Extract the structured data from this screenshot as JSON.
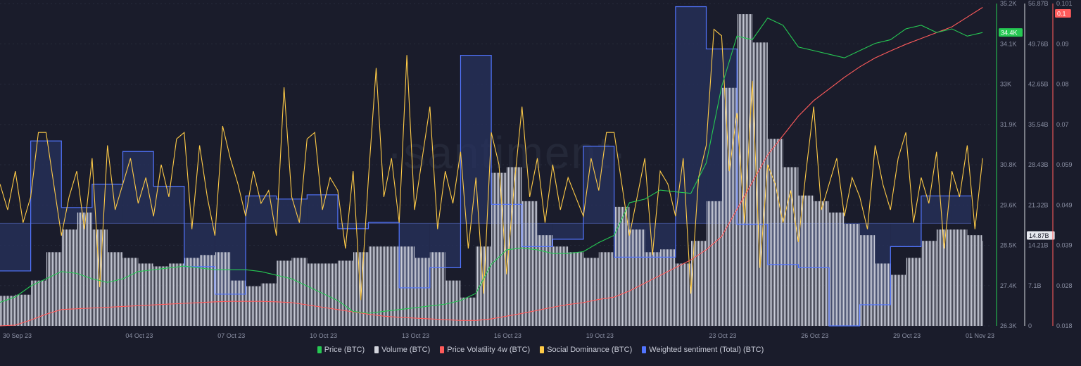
{
  "watermark": "·santiment·",
  "chart_data": {
    "type": "line",
    "x_ticks": [
      "30 Sep 23",
      "04 Oct 23",
      "07 Oct 23",
      "10 Oct 23",
      "13 Oct 23",
      "16 Oct 23",
      "19 Oct 23",
      "23 Oct 23",
      "26 Oct 23",
      "29 Oct 23",
      "01 Nov 23"
    ],
    "x_tick_dates": [
      "2023-09-30",
      "2023-10-04",
      "2023-10-07",
      "2023-10-10",
      "2023-10-13",
      "2023-10-16",
      "2023-10-19",
      "2023-10-23",
      "2023-10-26",
      "2023-10-29",
      "2023-11-01"
    ],
    "x_range": [
      "2023-09-29 12:00",
      "2023-11-01 00:00"
    ],
    "grid": true,
    "legend_placement": "bottom",
    "axes": {
      "price": {
        "ticks": [
          "35.2K",
          "34.1K",
          "33K",
          "31.9K",
          "30.8K",
          "29.6K",
          "28.5K",
          "27.4K",
          "26.3K"
        ],
        "ylim": [
          26.3,
          35.2
        ],
        "unit": "K USD",
        "current_label": "34.4K",
        "current_value": 34.4,
        "color": "#26c953"
      },
      "volume": {
        "ticks": [
          "56.87B",
          "49.76B",
          "42.65B",
          "35.54B",
          "28.43B",
          "21.32B",
          "14.21B",
          "7.1B",
          "0"
        ],
        "ylim": [
          0,
          56.87
        ],
        "unit": "B",
        "current_label": "14.87B",
        "current_value": 14.87,
        "color": "#d2d4dc"
      },
      "volatility": {
        "ticks": [
          "0.101",
          "0.09",
          "0.08",
          "0.07",
          "0.059",
          "0.049",
          "0.039",
          "0.028",
          "0.018"
        ],
        "ylim": [
          0.018,
          0.101
        ],
        "current_label": "0.1",
        "current_value": 0.1,
        "color": "#ff5b5b"
      }
    },
    "series": [
      {
        "name": "Price (BTC)",
        "color": "#26c953",
        "axis": "price",
        "x_start": "2023-09-29 12:00",
        "interval_hours": 12,
        "values": [
          26.95,
          27.1,
          27.4,
          27.6,
          27.8,
          27.75,
          27.6,
          27.5,
          27.6,
          27.8,
          27.85,
          27.9,
          27.95,
          27.9,
          27.85,
          27.85,
          27.85,
          27.8,
          27.7,
          27.6,
          27.4,
          27.2,
          27.0,
          26.7,
          26.65,
          26.7,
          26.75,
          26.8,
          26.85,
          26.9,
          27.0,
          27.2,
          28.0,
          28.4,
          28.45,
          28.4,
          28.3,
          28.3,
          28.35,
          28.6,
          28.8,
          29.7,
          29.8,
          30.05,
          30.0,
          29.96,
          30.8,
          32.9,
          34.3,
          34.2,
          34.8,
          34.6,
          34.0,
          33.9,
          33.8,
          33.7,
          33.9,
          34.1,
          34.2,
          34.5,
          34.6,
          34.4,
          34.5,
          34.3,
          34.4
        ]
      },
      {
        "name": "Volume (BTC)",
        "color": "#d2d4dc",
        "axis": "volume",
        "x_start": "2023-09-29 12:00",
        "interval_hours": 12,
        "values": [
          5.3,
          5.5,
          8,
          13,
          17,
          20,
          17,
          13,
          12,
          11,
          10.5,
          11,
          12,
          12.5,
          13,
          8,
          7,
          7.5,
          11.5,
          12,
          11,
          11,
          11.5,
          13,
          14,
          14,
          14,
          12,
          13,
          8,
          5,
          14,
          27,
          28,
          22,
          16,
          14,
          13,
          12,
          13,
          21,
          17,
          13,
          13.5,
          11,
          15,
          22,
          42,
          55,
          50,
          33,
          28,
          23,
          22,
          20,
          18,
          16,
          11,
          9,
          12,
          15,
          17,
          17,
          16,
          15
        ]
      },
      {
        "name": "Price Volatility 4w (BTC)",
        "color": "#ff5b5b",
        "axis": "volatility",
        "x_start": "2023-09-29 12:00",
        "interval_hours": 12,
        "values": [
          0.018,
          0.0182,
          0.0195,
          0.021,
          0.0222,
          0.0224,
          0.0226,
          0.0228,
          0.023,
          0.0232,
          0.0234,
          0.0236,
          0.0238,
          0.024,
          0.0242,
          0.0243,
          0.0243,
          0.0243,
          0.0242,
          0.024,
          0.0234,
          0.0228,
          0.0222,
          0.0216,
          0.021,
          0.0205,
          0.0202,
          0.02,
          0.0198,
          0.0196,
          0.0194,
          0.0194,
          0.0198,
          0.0205,
          0.0212,
          0.022,
          0.0228,
          0.0235,
          0.024,
          0.0248,
          0.0254,
          0.027,
          0.029,
          0.031,
          0.033,
          0.035,
          0.0376,
          0.041,
          0.048,
          0.055,
          0.062,
          0.067,
          0.072,
          0.076,
          0.079,
          0.082,
          0.0847,
          0.087,
          0.0888,
          0.0905,
          0.092,
          0.0935,
          0.095,
          0.0975,
          0.1
        ]
      },
      {
        "name": "Social Dominance (BTC)",
        "color": "#ffcb47",
        "axis": "hidden",
        "ylim": [
          0,
          5
        ],
        "x_start": "2023-09-29 12:00",
        "interval_hours": 6,
        "values": [
          2.2,
          1.8,
          2.4,
          1.6,
          2.0,
          3.0,
          3.0,
          2.2,
          1.4,
          2.0,
          2.4,
          1.5,
          2.6,
          0.6,
          2.8,
          1.8,
          2.2,
          2.6,
          1.9,
          2.3,
          1.7,
          2.5,
          2.0,
          2.9,
          3.0,
          1.5,
          2.8,
          2.0,
          1.4,
          3.1,
          2.6,
          2.2,
          1.7,
          2.4,
          1.9,
          2.1,
          1.4,
          3.7,
          2.0,
          1.6,
          2.9,
          3.0,
          1.8,
          2.3,
          2.1,
          1.2,
          2.4,
          0.4,
          2.3,
          4.0,
          2.0,
          2.6,
          1.6,
          4.2,
          1.8,
          2.6,
          3.4,
          1.5,
          2.4,
          1.9,
          2.7,
          1.2,
          2.3,
          0.5,
          3.0,
          2.5,
          0.8,
          2.2,
          3.4,
          2.0,
          2.6,
          1.6,
          2.5,
          1.8,
          2.3,
          2.0,
          1.7,
          2.6,
          2.1,
          3.0,
          3.0,
          2.2,
          1.4,
          2.0,
          2.6,
          1.1,
          2.4,
          2.2,
          1.7,
          2.6,
          0.5,
          2.3,
          2.8,
          4.6,
          4.5,
          2.4,
          3.3,
          1.6,
          3.8,
          0.9,
          2.5,
          2.2,
          1.6,
          2.1,
          1.3,
          2.4,
          3.4,
          1.8,
          2.2,
          2.6,
          1.7,
          2.3,
          2.0,
          1.5,
          2.8,
          2.2,
          1.8,
          2.6,
          3.0,
          1.6,
          2.3,
          1.9,
          2.7,
          1.2,
          2.4,
          2.0,
          2.8,
          1.5,
          2.6
        ]
      },
      {
        "name": "Weighted sentiment (Total) (BTC)",
        "color": "#5275ff",
        "axis": "hidden",
        "ylim": [
          -0.97,
          2.08
        ],
        "x_start": "2023-09-29 12:00",
        "interval_hours": 24,
        "style": "step",
        "values": [
          -0.45,
          0.78,
          0.15,
          0.37,
          0.68,
          0.35,
          -0.41,
          -0.67,
          0.26,
          0.23,
          0.27,
          -0.05,
          0.01,
          -0.61,
          -0.42,
          1.59,
          0.18,
          -0.22,
          -0.15,
          0.73,
          -0.32,
          -0.32,
          2.05,
          1.65,
          -0.01,
          -0.39,
          -0.42,
          -0.97,
          -0.77,
          -0.22,
          0.26,
          0.26
        ]
      }
    ]
  }
}
